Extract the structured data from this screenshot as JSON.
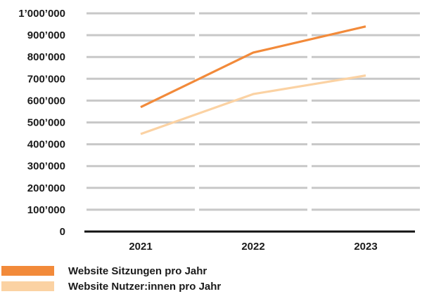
{
  "chart_data": {
    "type": "line",
    "x": [
      "2021",
      "2022",
      "2023"
    ],
    "series": [
      {
        "name": "Website Sitzungen pro Jahr",
        "values": [
          570000,
          820000,
          940000
        ],
        "color": "#f28a3a"
      },
      {
        "name": "Website Nutzer:innen pro Jahr",
        "values": [
          447000,
          630000,
          715000
        ],
        "color": "#fbd2a3"
      }
    ],
    "ylim": [
      0,
      1000000
    ],
    "y_ticks": [
      {
        "value": 0,
        "label": "0"
      },
      {
        "value": 100000,
        "label": "100’000"
      },
      {
        "value": 200000,
        "label": "200’000"
      },
      {
        "value": 300000,
        "label": "300’000"
      },
      {
        "value": 400000,
        "label": "400’000"
      },
      {
        "value": 500000,
        "label": "500’000"
      },
      {
        "value": 600000,
        "label": "600’000"
      },
      {
        "value": 700000,
        "label": "700’000"
      },
      {
        "value": 800000,
        "label": "800’000"
      },
      {
        "value": 900000,
        "label": "900’000"
      },
      {
        "value": 1000000,
        "label": "1’000’000"
      }
    ],
    "grid": true,
    "grid_color": "#c8c8c8",
    "axis_color": "#111111",
    "legend_position": "bottom-left",
    "title": "",
    "xlabel": "",
    "ylabel": ""
  }
}
